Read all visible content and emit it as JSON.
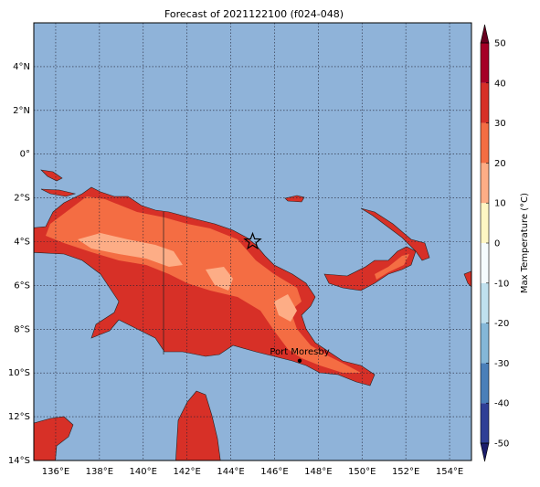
{
  "title": "Forecast of 2021122100 (f024-048)",
  "map": {
    "type": "map",
    "xlim": [
      135,
      155
    ],
    "ylim": [
      -14,
      6
    ],
    "grid": true,
    "ocean_color": "#8fb3d9",
    "xticks": [
      {
        "value": 136,
        "label": "136°E"
      },
      {
        "value": 138,
        "label": "138°E"
      },
      {
        "value": 140,
        "label": "140°E"
      },
      {
        "value": 142,
        "label": "142°E"
      },
      {
        "value": 144,
        "label": "144°E"
      },
      {
        "value": 146,
        "label": "146°E"
      },
      {
        "value": 148,
        "label": "148°E"
      },
      {
        "value": 150,
        "label": "150°E"
      },
      {
        "value": 152,
        "label": "152°E"
      },
      {
        "value": 154,
        "label": "154°E"
      }
    ],
    "yticks": [
      {
        "value": 4,
        "label": "4°N"
      },
      {
        "value": 2,
        "label": "2°N"
      },
      {
        "value": 0,
        "label": "0°"
      },
      {
        "value": -2,
        "label": "2°S"
      },
      {
        "value": -4,
        "label": "4°S"
      },
      {
        "value": -6,
        "label": "6°S"
      },
      {
        "value": -8,
        "label": "8°S"
      },
      {
        "value": -10,
        "label": "10°S"
      },
      {
        "value": -12,
        "label": "12°S"
      },
      {
        "value": -14,
        "label": "14°S"
      }
    ],
    "city": {
      "name": "Port Moresby",
      "lon": 147.15,
      "lat": -9.44
    },
    "star": {
      "lon": 145,
      "lat": -4
    }
  },
  "colorbar": {
    "label": "Max Temperature (°C)",
    "levels": [
      -50,
      -40,
      -30,
      -20,
      -10,
      0,
      10,
      20,
      30,
      40,
      50
    ],
    "colors": [
      "#2f3f96",
      "#4a7fb9",
      "#84b7d8",
      "#bfe0ee",
      "#f5fbfd",
      "#fef6c4",
      "#fdad86",
      "#f46d43",
      "#d73027",
      "#a50026"
    ],
    "extend_colors": [
      "#1b1d6b",
      "#67001f"
    ]
  }
}
